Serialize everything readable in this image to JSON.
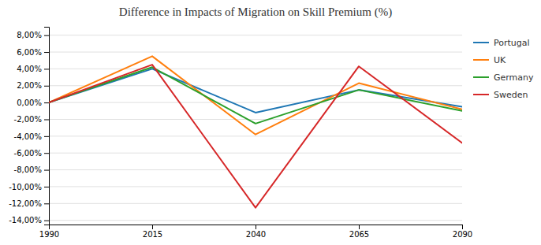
{
  "chart_data": {
    "type": "line",
    "title": "Difference in Impacts of Migration on Skill Premium (%)",
    "x": [
      1990,
      2015,
      2040,
      2065,
      2090
    ],
    "series": [
      {
        "name": "Portugal",
        "values": [
          0.0,
          4.0,
          -1.2,
          1.5,
          -0.5
        ]
      },
      {
        "name": "UK",
        "values": [
          0.0,
          5.5,
          -3.8,
          2.3,
          -0.8
        ]
      },
      {
        "name": "Germany",
        "values": [
          0.0,
          4.2,
          -2.5,
          1.5,
          -1.0
        ]
      },
      {
        "name": "Sweden",
        "values": [
          0.0,
          4.5,
          -12.5,
          4.3,
          -4.8
        ]
      }
    ],
    "xlim": [
      1990,
      2090
    ],
    "xticks": [
      1990,
      2015,
      2040,
      2065,
      2090
    ],
    "ylim": [
      -14.5,
      9.0
    ],
    "yticks": [
      {
        "value": -14.0,
        "label": "-14,00%"
      },
      {
        "value": -12.0,
        "label": "-12,00%"
      },
      {
        "value": -10.0,
        "label": "-10,00%"
      },
      {
        "value": -8.0,
        "label": "-8,00%"
      },
      {
        "value": -6.0,
        "label": "-6,00%"
      },
      {
        "value": -4.0,
        "label": "-4,00%"
      },
      {
        "value": -2.0,
        "label": "-2,00%"
      },
      {
        "value": 0.0,
        "label": "0,00%"
      },
      {
        "value": 2.0,
        "label": "2,00%"
      },
      {
        "value": 4.0,
        "label": "4,00%"
      },
      {
        "value": 6.0,
        "label": "6,00%"
      },
      {
        "value": 8.0,
        "label": "8,00%"
      }
    ],
    "grid": true,
    "legend": "right"
  }
}
